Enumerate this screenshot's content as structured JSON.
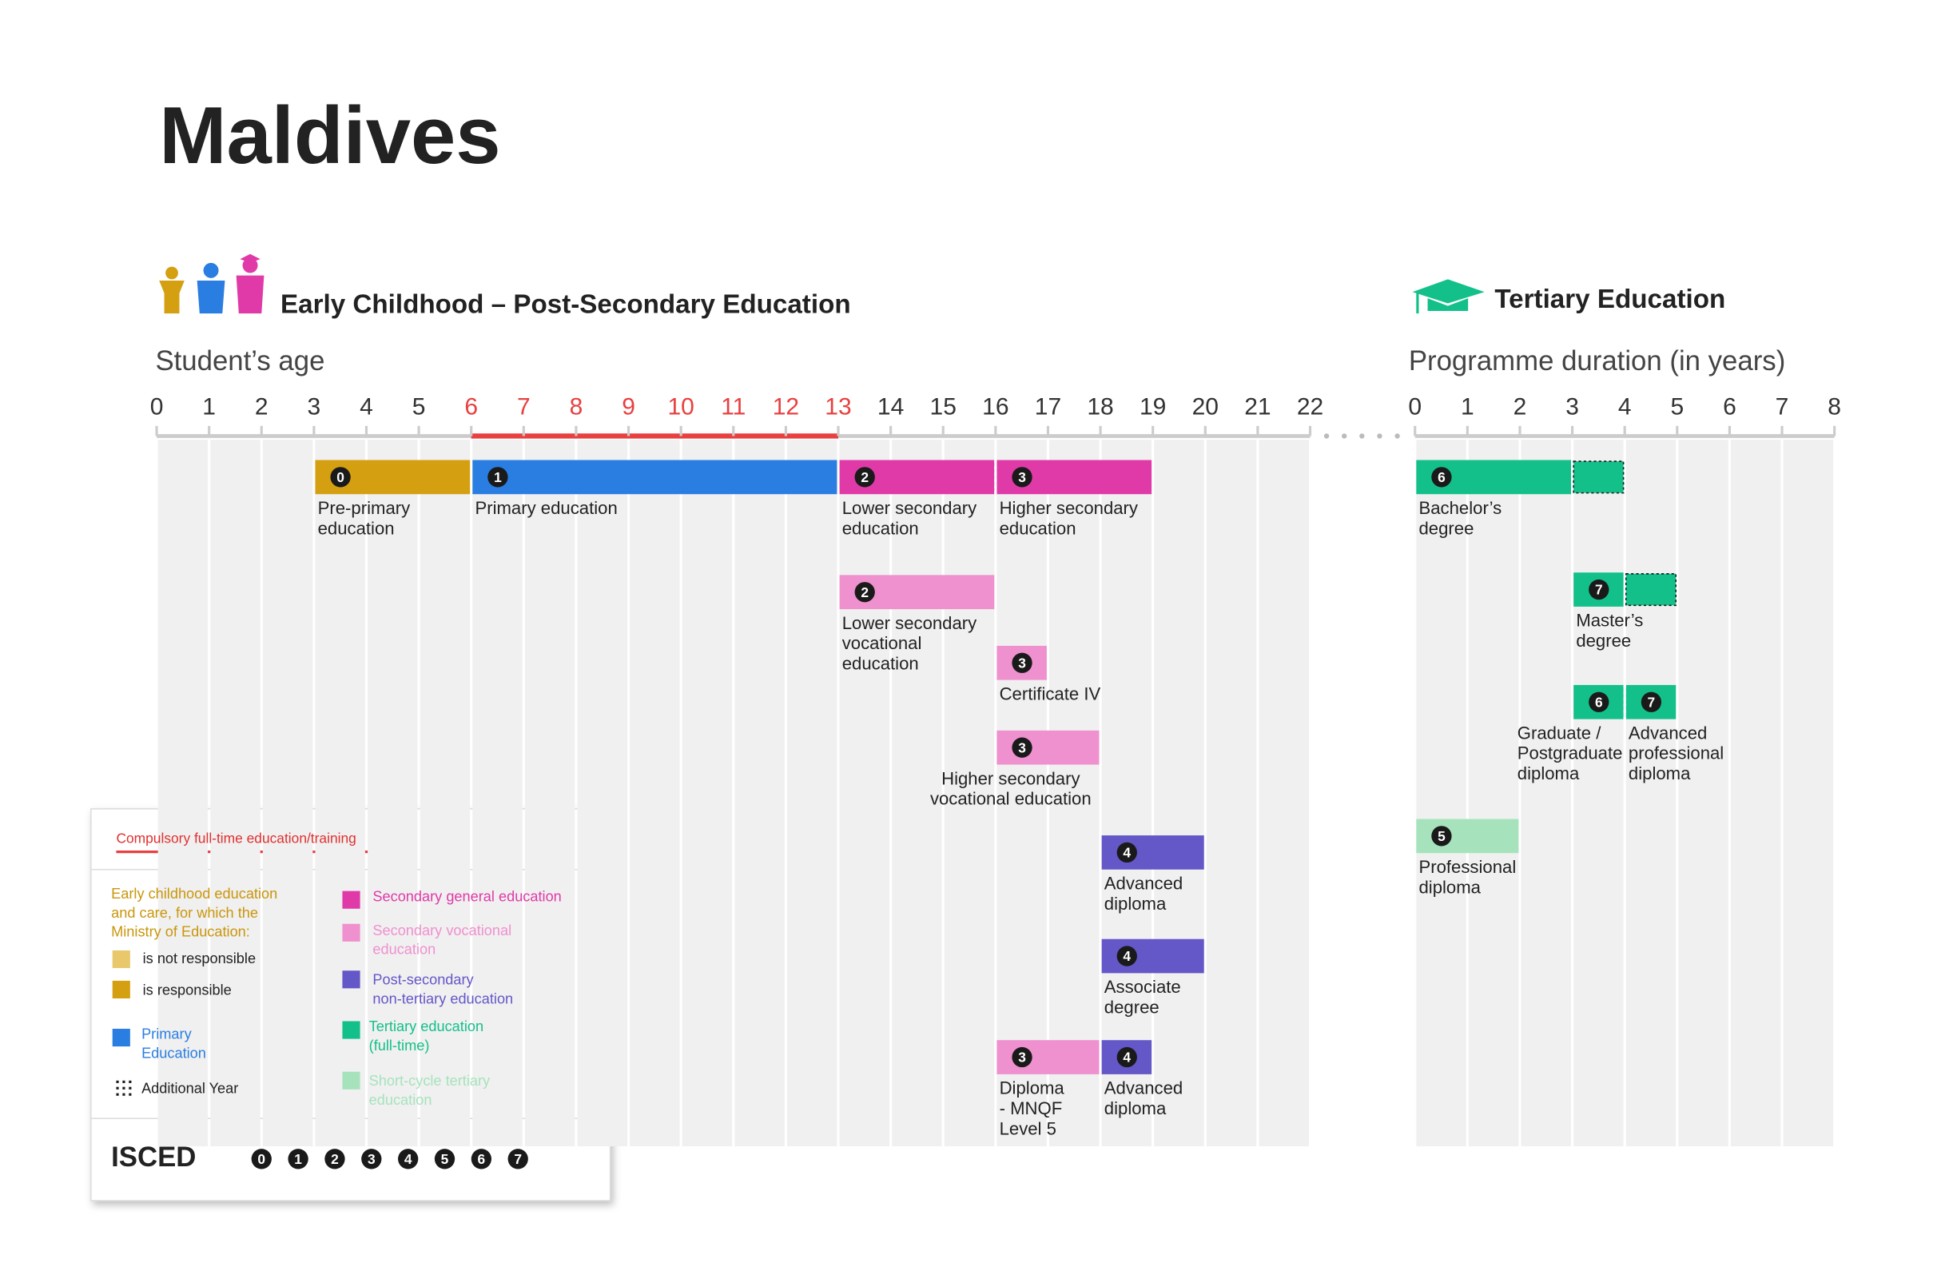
{
  "title": "Maldives",
  "early": {
    "heading": "Early Childhood – Post-Secondary Education",
    "axis_title": "Student’s age",
    "ticks": [
      0,
      1,
      2,
      3,
      4,
      5,
      6,
      7,
      8,
      9,
      10,
      11,
      12,
      13,
      14,
      15,
      16,
      17,
      18,
      19,
      20,
      21,
      22
    ],
    "compulsory": [
      6,
      13
    ],
    "programmes": [
      {
        "isced": 0,
        "label": [
          "Pre-primary",
          "education"
        ],
        "start": 3,
        "end": 6,
        "color": "#d4a011"
      },
      {
        "isced": 1,
        "label": [
          "Primary education"
        ],
        "start": 6,
        "end": 13,
        "color": "#2a7de1"
      },
      {
        "isced": 2,
        "label": [
          "Lower secondary",
          "education"
        ],
        "start": 13,
        "end": 16,
        "color": "#e03aa8"
      },
      {
        "isced": 3,
        "label": [
          "Higher secondary",
          "education"
        ],
        "start": 16,
        "end": 19,
        "color": "#e03aa8"
      },
      {
        "isced": 2,
        "label": [
          "Lower secondary",
          "vocational",
          "education"
        ],
        "start": 13,
        "end": 16,
        "color": "#ef90cf"
      },
      {
        "isced": 3,
        "label": [
          "Certificate IV"
        ],
        "start": 16,
        "end": 17,
        "color": "#ef90cf"
      },
      {
        "isced": 3,
        "label": [
          "Higher secondary",
          "vocational education"
        ],
        "start": 16,
        "end": 18,
        "color": "#ef90cf"
      },
      {
        "isced": 4,
        "label": [
          "Advanced",
          "diploma"
        ],
        "start": 18,
        "end": 20,
        "color": "#6457c8"
      },
      {
        "isced": 4,
        "label": [
          "Associate",
          "degree"
        ],
        "start": 18,
        "end": 20,
        "color": "#6457c8"
      },
      {
        "isced": 3,
        "label": [
          "Diploma",
          "- MNQF",
          "Level 5"
        ],
        "start": 16,
        "end": 18,
        "color": "#ef90cf"
      },
      {
        "isced": 4,
        "label": [
          "Advanced",
          "diploma"
        ],
        "start": 18,
        "end": 19,
        "color": "#6457c8"
      }
    ]
  },
  "tertiary": {
    "heading": "Tertiary Education",
    "axis_title": "Programme duration (in years)",
    "ticks": [
      0,
      1,
      2,
      3,
      4,
      5,
      6,
      7,
      8
    ],
    "programmes": [
      {
        "isced": 6,
        "label": [
          "Bachelor’s",
          "degree"
        ],
        "start": 0,
        "end": 3,
        "additional_end": 4,
        "color": "#13c08a"
      },
      {
        "isced": 7,
        "label": [
          "Master’s",
          "degree"
        ],
        "start": 3,
        "end": 4,
        "additional_end": 5,
        "color": "#13c08a"
      },
      {
        "isced": 6,
        "label": [
          "Graduate /",
          "Postgraduate",
          "diploma"
        ],
        "start": 3,
        "end": 4,
        "color": "#13c08a"
      },
      {
        "isced": 7,
        "label": [
          "Advanced",
          "professional",
          "diploma"
        ],
        "start": 4,
        "end": 5,
        "color": "#13c08a"
      },
      {
        "isced": 5,
        "label": [
          "Professional",
          "diploma"
        ],
        "start": 0,
        "end": 2,
        "color": "#a6e3bd"
      }
    ]
  },
  "legend": {
    "compulsory": "Compulsory full-time education/training",
    "ecec_intro": [
      "Early childhood education",
      "and care, for which the",
      "Ministry of Education:"
    ],
    "items": [
      {
        "label": [
          "is not responsible"
        ],
        "color": "#e8c86a"
      },
      {
        "label": [
          "is responsible"
        ],
        "color": "#d4a011"
      },
      {
        "label": [
          "Primary",
          "Education"
        ],
        "color": "#2a7de1"
      },
      {
        "label": [
          "Additional Year"
        ]
      },
      {
        "label": [
          "Secondary general education"
        ],
        "color": "#e03aa8"
      },
      {
        "label": [
          "Secondary vocational",
          "education"
        ],
        "color": "#ef90cf"
      },
      {
        "label": [
          "Post-secondary",
          "non-tertiary education"
        ],
        "color": "#6457c8"
      },
      {
        "label": [
          "Tertiary education",
          "(full-time)"
        ],
        "color": "#13c08a"
      },
      {
        "label": [
          "Short-cycle tertiary",
          "education"
        ],
        "color": "#a6e3bd"
      }
    ],
    "isced_title": "ISCED",
    "isced_levels": [
      0,
      1,
      2,
      3,
      4,
      5,
      6,
      7
    ]
  }
}
